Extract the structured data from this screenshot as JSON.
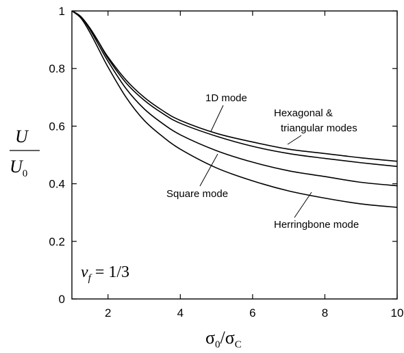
{
  "chart_data": {
    "type": "line",
    "xlabel": "σ0/σC",
    "ylabel": "U/U0",
    "xlim": [
      1,
      10
    ],
    "ylim": [
      0,
      1
    ],
    "xticks": [
      2,
      4,
      6,
      8,
      10
    ],
    "yticks": [
      0,
      0.2,
      0.4,
      0.6,
      0.8,
      1
    ],
    "xtick_labels": [
      "2",
      "4",
      "6",
      "8",
      "10"
    ],
    "ytick_labels": [
      "0",
      "0.2",
      "0.4",
      "0.6",
      "0.8",
      "1"
    ],
    "grid": false,
    "annotation": "ν_f = 1/3",
    "series": [
      {
        "name": "1D mode",
        "x": [
          1,
          1.25,
          1.5,
          1.75,
          2,
          2.5,
          3,
          3.5,
          4,
          5,
          6,
          7,
          8,
          9,
          10
        ],
        "values": [
          1,
          0.98,
          0.94,
          0.89,
          0.84,
          0.76,
          0.7,
          0.655,
          0.62,
          0.575,
          0.545,
          0.52,
          0.505,
          0.49,
          0.478
        ]
      },
      {
        "name": "Hexagonal & triangular modes",
        "x": [
          1,
          1.25,
          1.5,
          1.75,
          2,
          2.5,
          3,
          3.5,
          4,
          5,
          6,
          7,
          8,
          9,
          10
        ],
        "values": [
          1,
          0.98,
          0.94,
          0.89,
          0.835,
          0.75,
          0.69,
          0.645,
          0.61,
          0.565,
          0.53,
          0.505,
          0.488,
          0.473,
          0.46
        ]
      },
      {
        "name": "Square mode",
        "x": [
          1,
          1.25,
          1.5,
          1.75,
          2,
          2.5,
          3,
          3.5,
          4,
          5,
          6,
          7,
          8,
          9,
          10
        ],
        "values": [
          1,
          0.98,
          0.935,
          0.88,
          0.825,
          0.73,
          0.66,
          0.61,
          0.57,
          0.515,
          0.475,
          0.445,
          0.425,
          0.405,
          0.393
        ]
      },
      {
        "name": "Herringbone mode",
        "x": [
          1,
          1.25,
          1.5,
          1.75,
          2,
          2.5,
          3,
          3.5,
          4,
          5,
          6,
          7,
          8,
          9,
          10
        ],
        "values": [
          1,
          0.975,
          0.925,
          0.865,
          0.805,
          0.7,
          0.62,
          0.565,
          0.52,
          0.455,
          0.41,
          0.375,
          0.35,
          0.33,
          0.318
        ]
      }
    ]
  },
  "labels": {
    "mode_1d": "1D mode",
    "hex_line1": "Hexagonal &",
    "hex_line2": "triangular modes",
    "square": "Square mode",
    "herringbone": "Herringbone mode"
  }
}
